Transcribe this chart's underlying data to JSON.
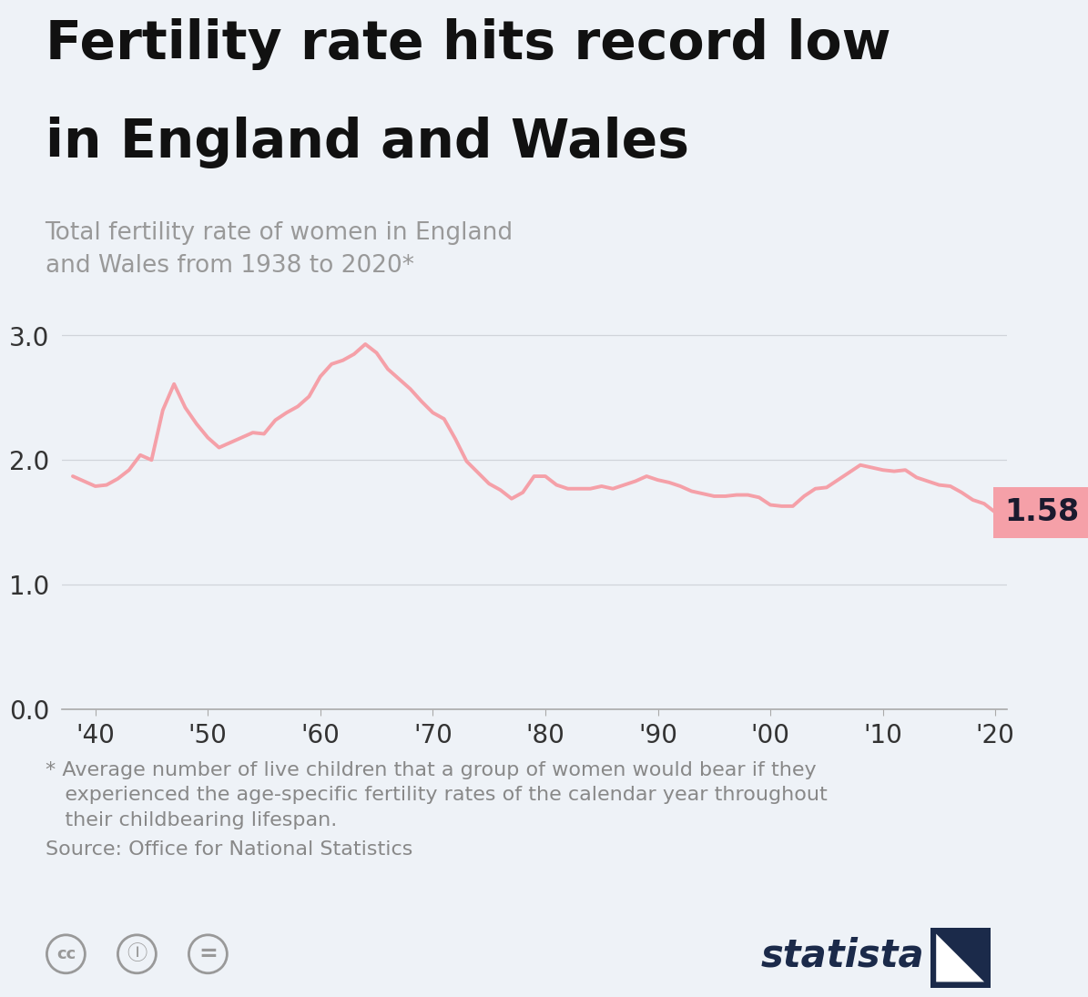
{
  "title_line1": "Fertility rate hits record low",
  "title_line2": "in England and Wales",
  "subtitle_line1": "Total fertility rate of women in England",
  "subtitle_line2": "and Wales from 1938 to 2020*",
  "footnote_line1": "* Average number of live children that a group of women would bear if they",
  "footnote_line2": "   experienced the age-specific fertility rates of the calendar year throughout",
  "footnote_line3": "   their childbearing lifespan.",
  "source": "Source: Office for National Statistics",
  "bg_color": "#eef2f7",
  "line_color": "#f5a0a8",
  "title_bar_color": "#f5a0a8",
  "label_value": "1.58",
  "label_bg": "#f5a0a8",
  "label_text_color": "#1a1a2e",
  "title_color": "#111111",
  "subtitle_color": "#999999",
  "footnote_color": "#888888",
  "axis_label_color": "#333333",
  "grid_color": "#d0d4da",
  "spine_color": "#aaaaaa",
  "ylim": [
    0.0,
    3.2
  ],
  "xlim": [
    1937,
    2021
  ],
  "yticks": [
    0.0,
    1.0,
    2.0,
    3.0
  ],
  "xtick_years": [
    1940,
    1950,
    1960,
    1970,
    1980,
    1990,
    2000,
    2010,
    2020
  ],
  "xtick_labels": [
    "'40",
    "'50",
    "'60",
    "'70",
    "'80",
    "'90",
    "'00",
    "'10",
    "'20"
  ],
  "years": [
    1938,
    1939,
    1940,
    1941,
    1942,
    1943,
    1944,
    1945,
    1946,
    1947,
    1948,
    1949,
    1950,
    1951,
    1952,
    1953,
    1954,
    1955,
    1956,
    1957,
    1958,
    1959,
    1960,
    1961,
    1962,
    1963,
    1964,
    1965,
    1966,
    1967,
    1968,
    1969,
    1970,
    1971,
    1972,
    1973,
    1974,
    1975,
    1976,
    1977,
    1978,
    1979,
    1980,
    1981,
    1982,
    1983,
    1984,
    1985,
    1986,
    1987,
    1988,
    1989,
    1990,
    1991,
    1992,
    1993,
    1994,
    1995,
    1996,
    1997,
    1998,
    1999,
    2000,
    2001,
    2002,
    2003,
    2004,
    2005,
    2006,
    2007,
    2008,
    2009,
    2010,
    2011,
    2012,
    2013,
    2014,
    2015,
    2016,
    2017,
    2018,
    2019,
    2020
  ],
  "values": [
    1.87,
    1.83,
    1.79,
    1.8,
    1.85,
    1.92,
    2.04,
    2.0,
    2.4,
    2.61,
    2.42,
    2.29,
    2.18,
    2.1,
    2.14,
    2.18,
    2.22,
    2.21,
    2.32,
    2.38,
    2.43,
    2.51,
    2.67,
    2.77,
    2.8,
    2.85,
    2.93,
    2.86,
    2.73,
    2.65,
    2.57,
    2.47,
    2.38,
    2.33,
    2.17,
    1.99,
    1.9,
    1.81,
    1.76,
    1.69,
    1.74,
    1.87,
    1.87,
    1.8,
    1.77,
    1.77,
    1.77,
    1.79,
    1.77,
    1.8,
    1.83,
    1.87,
    1.84,
    1.82,
    1.79,
    1.75,
    1.73,
    1.71,
    1.71,
    1.72,
    1.72,
    1.7,
    1.64,
    1.63,
    1.63,
    1.71,
    1.77,
    1.78,
    1.84,
    1.9,
    1.96,
    1.94,
    1.92,
    1.91,
    1.92,
    1.86,
    1.83,
    1.8,
    1.79,
    1.74,
    1.68,
    1.65,
    1.58
  ],
  "statista_color": "#1b2a4a",
  "cc_icon_color": "#999999"
}
